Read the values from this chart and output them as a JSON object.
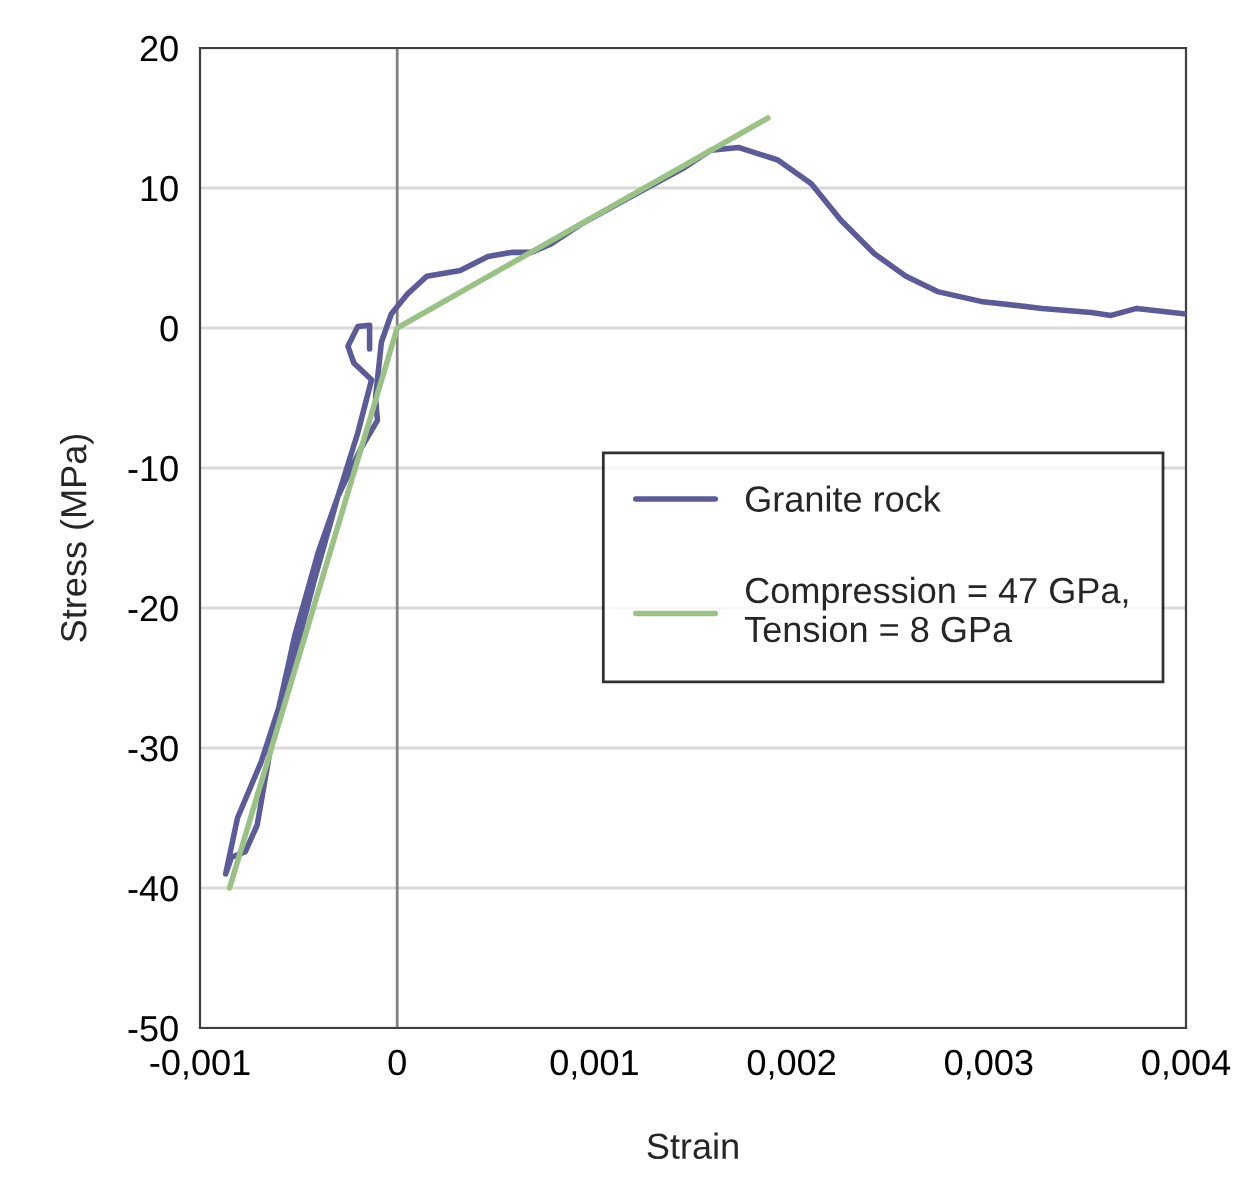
{
  "chart_data": {
    "type": "line",
    "xlabel": "Strain",
    "ylabel": "Stress (MPa)",
    "xlim": [
      -0.001,
      0.004
    ],
    "ylim": [
      -50,
      20
    ],
    "xticks": [
      {
        "value": -0.001,
        "label": "-0,001"
      },
      0,
      {
        "value": 0.001,
        "label": "0,001"
      },
      {
        "value": 0.002,
        "label": "0,002"
      },
      {
        "value": 0.003,
        "label": "0,003"
      },
      {
        "value": 0.004,
        "label": "0,004"
      }
    ],
    "yticks": [
      -50,
      -40,
      -30,
      -20,
      -10,
      0,
      10,
      20
    ],
    "grid": "y",
    "legend": "right",
    "line_style": "solid",
    "marker": "none",
    "ref_lines": [
      {
        "axis": "x",
        "value": 0,
        "label": null,
        "color": "#808080"
      }
    ],
    "series": [
      {
        "name": "Granite rock",
        "color": "#5b5b9a",
        "x": [
          -0.00014,
          -0.00014,
          -0.0002,
          -0.00025,
          -0.00022,
          -0.00013,
          -0.0002,
          -0.0003,
          -0.00042,
          -0.00054,
          -0.00069,
          -0.00081,
          -0.00087,
          -0.00084,
          -0.00077,
          -0.00071,
          -0.00063,
          -0.00052,
          -0.0004,
          -0.0003,
          -0.00018,
          -0.0001,
          -0.00011,
          -8e-05,
          -3e-05,
          5e-05,
          0.00015,
          0.00032,
          0.00046,
          0.00058,
          0.00068,
          0.00078,
          0.00093,
          0.0012,
          0.00145,
          0.00159,
          0.00173,
          0.00193,
          0.0021,
          0.00225,
          0.00242,
          0.00258,
          0.00274,
          0.00296,
          0.00327,
          0.00352,
          0.00362,
          0.00375,
          0.004
        ],
        "values": [
          -1.5,
          0.2,
          0.1,
          -1.3,
          -2.5,
          -3.7,
          -7.5,
          -12,
          -18,
          -24.5,
          -31,
          -35,
          -39,
          -37.8,
          -37.4,
          -35.5,
          -29,
          -22,
          -16,
          -12,
          -8.5,
          -6.6,
          -5,
          -1,
          1,
          2.4,
          3.7,
          4.1,
          5.1,
          5.4,
          5.4,
          6.0,
          7.4,
          9.5,
          11.4,
          12.7,
          12.9,
          12,
          10.3,
          7.7,
          5.3,
          3.7,
          2.6,
          1.9,
          1.4,
          1.1,
          0.9,
          1.4,
          1.0
        ]
      },
      {
        "name": "Compression = 47 GPa,\nTension = 8 GPa",
        "color": "#9bc285",
        "x": [
          -0.00085,
          0,
          0.00188
        ],
        "values": [
          -40,
          0,
          15
        ]
      }
    ]
  }
}
